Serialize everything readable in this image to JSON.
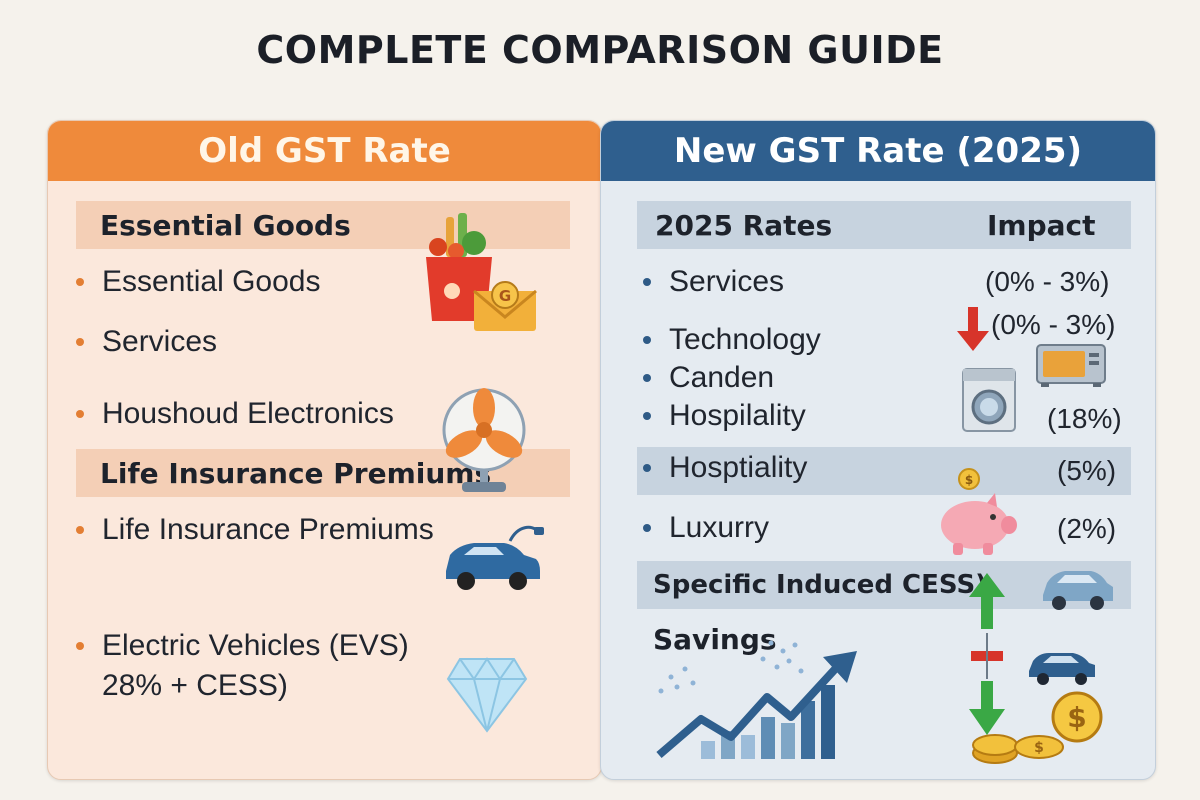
{
  "title": "COMPLETE COMPARISON GUIDE",
  "left": {
    "header": "Old GST Rate",
    "band1": "Essential Goods",
    "items1": [
      "Essential Goods",
      "Services",
      "Houshoud Electronics"
    ],
    "band2": "Life Insurance Premiums",
    "items2": [
      "Life Insurance Premiums",
      "Electric Vehicles (EVS)"
    ],
    "ev_rate": "28% + CESS)"
  },
  "right": {
    "header": "New GST Rate (2025)",
    "col_rates": "2025 Rates",
    "col_impact": "Impact",
    "items": [
      "Services",
      "Technology",
      "Canden",
      "Hospilality"
    ],
    "impacts": [
      "(0% - 3%)",
      "(0% - 3%)",
      "(18%)"
    ],
    "band_item": "Hosptiality",
    "band_impact": "(5%)",
    "luxury": "Luxurry",
    "luxury_impact": "(2%)",
    "cess_band": "Specific Induced CESS)",
    "savings": "Savings"
  },
  "colors": {
    "orange": "#ef8a3b",
    "navy": "#2f5f8e",
    "green_arrow": "#3aa845",
    "red_arrow": "#d7342a"
  },
  "icons": [
    "grocery-bag-icon",
    "gst-envelope-icon",
    "fan-icon",
    "electric-car-icon",
    "diamond-icon",
    "down-arrow-icon",
    "microwave-icon",
    "washing-machine-icon",
    "piggy-bank-icon",
    "car-icon",
    "up-down-arrow-icon",
    "growth-chart-icon",
    "coins-icon"
  ]
}
